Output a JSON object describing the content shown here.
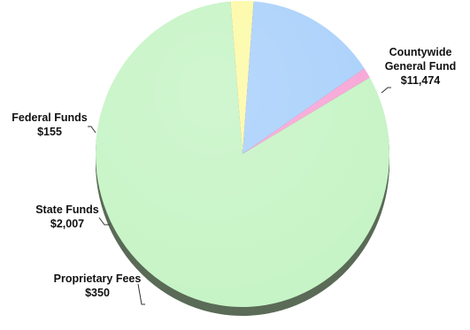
{
  "chart_data": {
    "type": "pie",
    "title": "",
    "slices": [
      {
        "label_lines": [
          "Countywide",
          "General Fund"
        ],
        "value": 11474,
        "value_label": "$11,474",
        "color": "#c6f4c5",
        "shade": "#5a6b57"
      },
      {
        "label_lines": [
          "Proprietary Fees"
        ],
        "value": 350,
        "value_label": "$350",
        "color": "#fdf9a6",
        "shade": "#6b6a44"
      },
      {
        "label_lines": [
          "State Funds"
        ],
        "value": 2007,
        "value_label": "$2,007",
        "color": "#a9d0fb",
        "shade": "#50627a"
      },
      {
        "label_lines": [
          "Federal Funds"
        ],
        "value": 155,
        "value_label": "$155",
        "color": "#f7a5d6",
        "shade": "#7a4f66"
      }
    ],
    "legend": "none",
    "style": "3d-tilted"
  }
}
